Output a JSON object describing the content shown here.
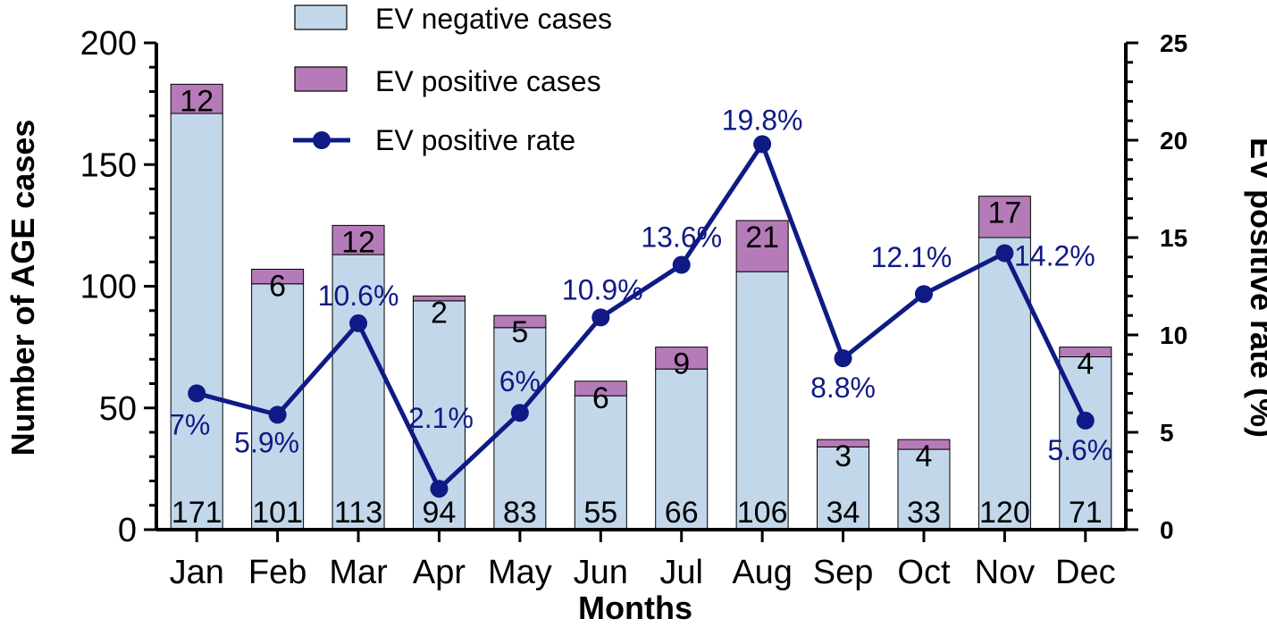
{
  "chart_data": {
    "type": "bar",
    "subtype": "stacked bar with line on secondary axis",
    "categories": [
      "Jan",
      "Feb",
      "Mar",
      "Apr",
      "May",
      "Jun",
      "Jul",
      "Aug",
      "Sep",
      "Oct",
      "Nov",
      "Dec"
    ],
    "series": [
      {
        "name": "EV negative cases",
        "kind": "bar",
        "axis": "left",
        "values": [
          171,
          101,
          113,
          94,
          83,
          55,
          66,
          106,
          34,
          33,
          120,
          71
        ],
        "labels": [
          "171",
          "101",
          "113",
          "94",
          "83",
          "55",
          "66",
          "106",
          "34",
          "33",
          "120",
          "71"
        ]
      },
      {
        "name": "EV positive cases",
        "kind": "bar",
        "axis": "left",
        "values": [
          12,
          6,
          12,
          2,
          5,
          6,
          9,
          21,
          3,
          4,
          17,
          4
        ],
        "labels": [
          "12",
          "6",
          "12",
          "2",
          "5",
          "6",
          "9",
          "21",
          "3",
          "4",
          "17",
          "4"
        ]
      },
      {
        "name": "EV positive rate",
        "kind": "line",
        "axis": "right",
        "values": [
          7,
          5.9,
          10.6,
          2.1,
          6,
          10.9,
          13.6,
          19.8,
          8.8,
          12.1,
          14.2,
          5.6
        ],
        "labels": [
          "7%",
          "5.9%",
          "10.6%",
          "2.1%",
          "6%",
          "10.9%",
          "13.6%",
          "19.8%",
          "8.8%",
          "12.1%",
          "14.2%",
          "5.6%"
        ]
      }
    ],
    "xlabel": "Months",
    "ylabel": "Number of  AGE cases",
    "y2label": "EV positive rate (%)",
    "ylim": [
      0,
      200
    ],
    "y2lim": [
      0,
      25
    ],
    "yticks": [
      "0",
      "50",
      "100",
      "150",
      "200"
    ],
    "y2ticks": [
      "0",
      "5",
      "10",
      "15",
      "20",
      "25"
    ],
    "grid": false,
    "legend_position": "top-center",
    "colors": {
      "negative": "#c2d8ea",
      "positive": "#b57bb8",
      "line": "#0f1a85",
      "axis": "#000000"
    }
  }
}
